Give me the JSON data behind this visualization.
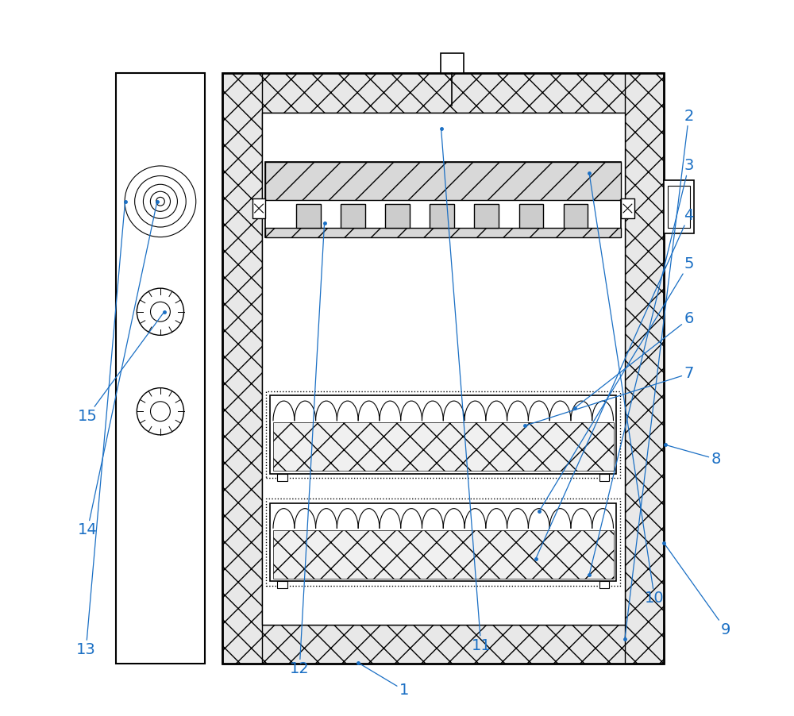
{
  "bg_color": "#ffffff",
  "line_color": "#000000",
  "label_color": "#1a6fc4",
  "fig_width": 10.0,
  "fig_height": 9.02
}
